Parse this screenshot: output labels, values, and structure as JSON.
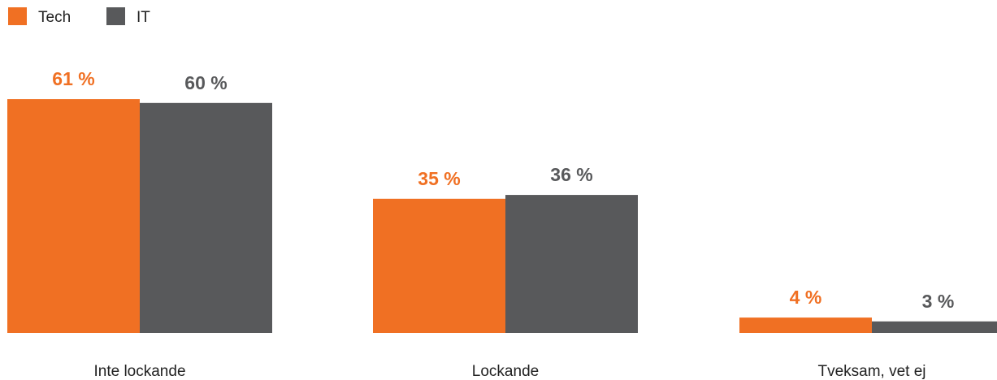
{
  "chart_data": {
    "type": "bar",
    "title": "",
    "xlabel": "",
    "ylabel": "",
    "categories": [
      "Inte lockande",
      "Lockande",
      "Tveksam, vet ej"
    ],
    "series": [
      {
        "name": "Tech",
        "color": "#f07023",
        "values": [
          61,
          35,
          4
        ],
        "labels": [
          "61 %",
          "35 %",
          "4 %"
        ]
      },
      {
        "name": "IT",
        "color": "#58595b",
        "values": [
          60,
          36,
          3
        ],
        "labels": [
          "60 %",
          "36 %",
          "3 %"
        ]
      }
    ],
    "ylim": [
      0,
      61
    ],
    "grid": false,
    "axes_visible": false,
    "legend_position": "top-left"
  }
}
